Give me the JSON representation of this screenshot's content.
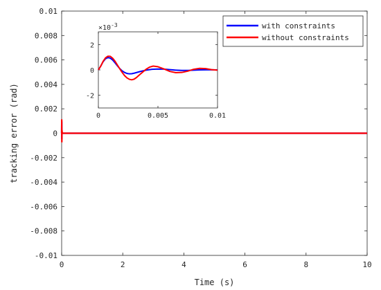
{
  "chart_data": [
    {
      "type": "line",
      "xlabel": "Time (s)",
      "ylabel": "tracking error (rad)",
      "xlim": [
        0,
        10
      ],
      "ylim": [
        -0.01,
        0.01
      ],
      "x_ticks": [
        0,
        2,
        4,
        6,
        8,
        10
      ],
      "x_tick_labels": [
        "0",
        "2",
        "4",
        "6",
        "8",
        "10"
      ],
      "y_ticks": [
        -0.01,
        -0.008,
        -0.006,
        -0.004,
        -0.002,
        0,
        0.002,
        0.004,
        0.006,
        0.008,
        0.01
      ],
      "y_tick_labels": [
        "-0.01",
        "-0.008",
        "-0.006",
        "-0.004",
        "-0.002",
        "0",
        "0.002",
        "0.004",
        "0.006",
        "0.008",
        "0.01"
      ],
      "legend_position": "top-right",
      "series": [
        {
          "name": "with constraints",
          "color": "#0000ff",
          "x": [
            0,
            0.003,
            0.006,
            0.01,
            0.02,
            0.05,
            0.1,
            0.5,
            1,
            2,
            3,
            4,
            5,
            6,
            7,
            8,
            9,
            10
          ],
          "y": [
            0,
            0.00095,
            -0.00045,
            0,
            0,
            0,
            0,
            0,
            0,
            0,
            0,
            0,
            0,
            0,
            0,
            0,
            0,
            0
          ]
        },
        {
          "name": "without constraints",
          "color": "#ff0000",
          "x": [
            0,
            0.003,
            0.006,
            0.01,
            0.02,
            0.05,
            0.1,
            0.5,
            1,
            2,
            3,
            4,
            5,
            6,
            7,
            8,
            9,
            10
          ],
          "y": [
            0,
            0.0011,
            -0.0007,
            0.00025,
            0,
            0,
            0,
            0,
            0,
            0,
            0,
            0,
            0,
            0,
            0,
            0,
            0,
            0
          ]
        }
      ]
    },
    {
      "type": "line",
      "xlim": [
        0,
        0.01
      ],
      "ylim": [
        -3,
        3
      ],
      "y_multiplier": "×10",
      "y_exponent": "-3",
      "x_ticks": [
        0,
        0.005,
        0.01
      ],
      "x_tick_labels": [
        "0",
        "0.005",
        "0.01"
      ],
      "y_ticks": [
        -2,
        0,
        2
      ],
      "y_tick_labels": [
        "-2",
        "0",
        "2"
      ],
      "series": [
        {
          "name": "with constraints",
          "color": "#0000ff",
          "x": [
            0,
            0.0002,
            0.0004,
            0.0006,
            0.0008,
            0.001,
            0.0012,
            0.0014,
            0.0016,
            0.0018,
            0.002,
            0.0022,
            0.0024,
            0.0026,
            0.0028,
            0.003,
            0.0035,
            0.004,
            0.0045,
            0.005,
            0.0055,
            0.006,
            0.0065,
            0.007,
            0.0075,
            0.008,
            0.0085,
            0.009,
            0.0095,
            0.01
          ],
          "y": [
            0,
            0.3,
            0.65,
            0.88,
            0.97,
            0.93,
            0.78,
            0.56,
            0.32,
            0.1,
            -0.08,
            -0.2,
            -0.28,
            -0.31,
            -0.3,
            -0.26,
            -0.13,
            -0.02,
            0.05,
            0.07,
            0.06,
            0.02,
            -0.02,
            -0.04,
            -0.04,
            -0.02,
            0,
            0.01,
            0.01,
            0
          ]
        },
        {
          "name": "without constraints",
          "color": "#ff0000",
          "x": [
            0,
            0.0002,
            0.0004,
            0.0006,
            0.0008,
            0.001,
            0.0012,
            0.0014,
            0.0016,
            0.0018,
            0.002,
            0.0022,
            0.0024,
            0.0026,
            0.0028,
            0.003,
            0.0032,
            0.0035,
            0.004,
            0.0043,
            0.0046,
            0.005,
            0.0055,
            0.006,
            0.0065,
            0.007,
            0.0075,
            0.008,
            0.0085,
            0.009,
            0.0095,
            0.01
          ],
          "y": [
            0,
            0.3,
            0.68,
            0.95,
            1.08,
            1.07,
            0.92,
            0.68,
            0.38,
            0.08,
            -0.2,
            -0.45,
            -0.63,
            -0.74,
            -0.78,
            -0.73,
            -0.6,
            -0.35,
            0.05,
            0.22,
            0.3,
            0.25,
            0.08,
            -0.12,
            -0.22,
            -0.2,
            -0.1,
            0.05,
            0.12,
            0.1,
            0.02,
            -0.02
          ]
        }
      ]
    }
  ]
}
